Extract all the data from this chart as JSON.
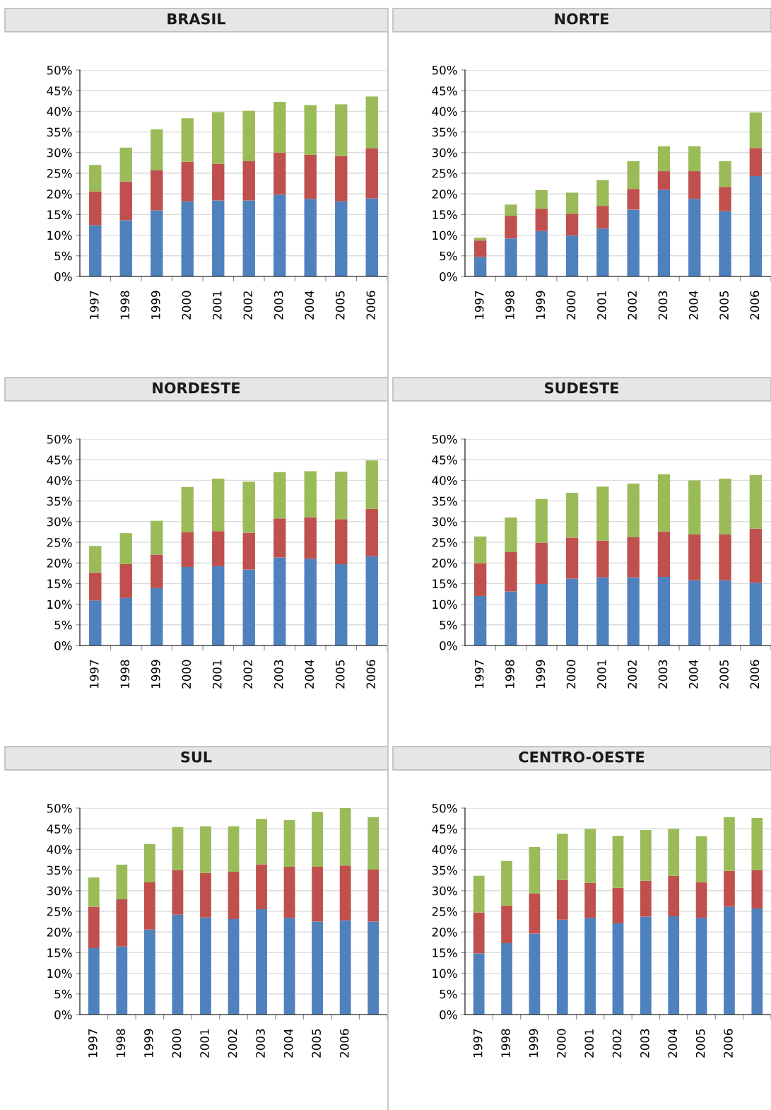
{
  "chart_data": [
    {
      "type": "bar",
      "title": "BRASIL",
      "stacked": true,
      "grid": "y",
      "categories": [
        "1997",
        "1998",
        "1999",
        "2000",
        "2001",
        "2002",
        "2003",
        "2004",
        "2005",
        "2006"
      ],
      "ylim": [
        0,
        50
      ],
      "yticks": [
        {
          "value": 0,
          "label": "0%"
        },
        {
          "value": 5,
          "label": "5%"
        },
        {
          "value": 10,
          "label": "10%"
        },
        {
          "value": 15,
          "label": "15%"
        },
        {
          "value": 20,
          "label": "20%"
        },
        {
          "value": 25,
          "label": "25%"
        },
        {
          "value": 30,
          "label": "30%"
        },
        {
          "value": 35,
          "label": "35%"
        },
        {
          "value": 40,
          "label": "40%"
        },
        {
          "value": 45,
          "label": "45%"
        },
        {
          "value": 50,
          "label": "50%"
        }
      ],
      "series": [
        {
          "color": "#4f81bd",
          "values": [
            12.4,
            13.6,
            16.0,
            18.2,
            18.4,
            18.4,
            19.8,
            18.8,
            18.2,
            18.9
          ]
        },
        {
          "color": "#c0504d",
          "values": [
            8.2,
            9.4,
            9.7,
            9.6,
            8.9,
            9.5,
            10.2,
            10.7,
            11.0,
            12.2
          ]
        },
        {
          "color": "#9bbb59",
          "values": [
            6.4,
            8.2,
            9.9,
            10.5,
            12.5,
            12.2,
            12.3,
            12.0,
            12.5,
            12.5
          ]
        }
      ]
    },
    {
      "type": "bar",
      "title": "NORTE",
      "stacked": true,
      "grid": "y",
      "categories": [
        "1997",
        "1998",
        "1999",
        "2000",
        "2001",
        "2002",
        "2003",
        "2004",
        "2005",
        "2006"
      ],
      "ylim": [
        0,
        50
      ],
      "yticks": [
        {
          "value": 0,
          "label": "0%"
        },
        {
          "value": 5,
          "label": "5%"
        },
        {
          "value": 10,
          "label": "10%"
        },
        {
          "value": 15,
          "label": "15%"
        },
        {
          "value": 20,
          "label": "20%"
        },
        {
          "value": 25,
          "label": "25%"
        },
        {
          "value": 30,
          "label": "30%"
        },
        {
          "value": 35,
          "label": "35%"
        },
        {
          "value": 40,
          "label": "40%"
        },
        {
          "value": 45,
          "label": "45%"
        },
        {
          "value": 50,
          "label": "50%"
        }
      ],
      "series": [
        {
          "color": "#4f81bd",
          "values": [
            4.7,
            9.2,
            11.0,
            9.9,
            11.6,
            16.2,
            21.0,
            18.8,
            15.8,
            24.3
          ]
        },
        {
          "color": "#c0504d",
          "values": [
            4.0,
            5.5,
            5.4,
            5.3,
            5.5,
            5.0,
            4.5,
            6.7,
            5.9,
            6.8
          ]
        },
        {
          "color": "#9bbb59",
          "values": [
            0.7,
            2.7,
            4.5,
            5.1,
            6.2,
            6.7,
            6.0,
            6.0,
            6.2,
            8.6
          ]
        }
      ]
    },
    {
      "type": "bar",
      "title": "NORDESTE",
      "stacked": true,
      "grid": "y",
      "categories": [
        "1997",
        "1998",
        "1999",
        "2000",
        "2001",
        "2002",
        "2003",
        "2004",
        "2005",
        "2006"
      ],
      "ylim": [
        0,
        50
      ],
      "yticks": [
        {
          "value": 0,
          "label": "0%"
        },
        {
          "value": 5,
          "label": "5%"
        },
        {
          "value": 10,
          "label": "10%"
        },
        {
          "value": 15,
          "label": "15%"
        },
        {
          "value": 20,
          "label": "20%"
        },
        {
          "value": 25,
          "label": "25%"
        },
        {
          "value": 30,
          "label": "30%"
        },
        {
          "value": 35,
          "label": "35%"
        },
        {
          "value": 40,
          "label": "40%"
        },
        {
          "value": 45,
          "label": "45%"
        },
        {
          "value": 50,
          "label": "50%"
        }
      ],
      "series": [
        {
          "color": "#4f81bd",
          "values": [
            10.9,
            11.5,
            13.9,
            19.0,
            19.2,
            18.4,
            21.3,
            21.0,
            19.7,
            21.6
          ]
        },
        {
          "color": "#c0504d",
          "values": [
            6.8,
            8.2,
            8.1,
            8.5,
            8.5,
            8.9,
            9.5,
            10.1,
            10.9,
            11.5
          ]
        },
        {
          "color": "#9bbb59",
          "values": [
            6.4,
            7.5,
            8.2,
            10.9,
            12.7,
            12.4,
            11.2,
            11.1,
            11.5,
            11.7
          ]
        }
      ]
    },
    {
      "type": "bar",
      "title": "SUDESTE",
      "stacked": true,
      "grid": "y",
      "categories": [
        "1997",
        "1998",
        "1999",
        "2000",
        "2001",
        "2002",
        "2003",
        "2004",
        "2005",
        "2006"
      ],
      "ylim": [
        0,
        50
      ],
      "yticks": [
        {
          "value": 0,
          "label": "0%"
        },
        {
          "value": 5,
          "label": "5%"
        },
        {
          "value": 10,
          "label": "10%"
        },
        {
          "value": 15,
          "label": "15%"
        },
        {
          "value": 20,
          "label": "20%"
        },
        {
          "value": 25,
          "label": "25%"
        },
        {
          "value": 30,
          "label": "30%"
        },
        {
          "value": 35,
          "label": "35%"
        },
        {
          "value": 40,
          "label": "40%"
        },
        {
          "value": 45,
          "label": "45%"
        },
        {
          "value": 50,
          "label": "50%"
        }
      ],
      "series": [
        {
          "color": "#4f81bd",
          "values": [
            12.0,
            13.1,
            14.9,
            16.2,
            16.5,
            16.5,
            16.6,
            15.8,
            15.8,
            15.2
          ]
        },
        {
          "color": "#c0504d",
          "values": [
            7.9,
            9.5,
            10.0,
            9.9,
            8.9,
            9.7,
            11.0,
            11.1,
            11.1,
            13.1
          ]
        },
        {
          "color": "#9bbb59",
          "values": [
            6.5,
            8.4,
            10.6,
            10.9,
            13.1,
            13.0,
            13.9,
            13.1,
            13.5,
            13.0
          ]
        }
      ]
    },
    {
      "type": "bar",
      "title": "SUL",
      "stacked": true,
      "grid": "y",
      "categories": [
        "1997",
        "1998",
        "1999",
        "2000",
        "2001",
        "2002",
        "2003",
        "2004",
        "2005",
        "2006",
        null
      ],
      "ylim": [
        0,
        50
      ],
      "yticks": [
        {
          "value": 0,
          "label": "0%"
        },
        {
          "value": 5,
          "label": "5%"
        },
        {
          "value": 10,
          "label": "10%"
        },
        {
          "value": 15,
          "label": "15%"
        },
        {
          "value": 20,
          "label": "20%"
        },
        {
          "value": 25,
          "label": "25%"
        },
        {
          "value": 30,
          "label": "30%"
        },
        {
          "value": 35,
          "label": "35%"
        },
        {
          "value": 40,
          "label": "40%"
        },
        {
          "value": 45,
          "label": "45%"
        },
        {
          "value": 50,
          "label": "50%"
        }
      ],
      "series": [
        {
          "color": "#4f81bd",
          "values": [
            16.1,
            16.5,
            20.6,
            24.2,
            23.5,
            23.1,
            25.5,
            23.4,
            22.5,
            22.8,
            22.5
          ]
        },
        {
          "color": "#c0504d",
          "values": [
            10.0,
            11.4,
            11.4,
            10.8,
            10.8,
            11.5,
            10.9,
            12.4,
            13.3,
            13.3,
            12.6
          ]
        },
        {
          "color": "#9bbb59",
          "values": [
            7.1,
            8.4,
            9.3,
            10.4,
            11.3,
            11.0,
            11.0,
            11.3,
            13.3,
            13.9,
            12.7
          ]
        }
      ]
    },
    {
      "type": "bar",
      "title": "CENTRO-OESTE",
      "stacked": true,
      "grid": "y",
      "categories": [
        "1997",
        "1998",
        "1999",
        "2000",
        "2001",
        "2002",
        "2003",
        "2004",
        "2005",
        "2006",
        null
      ],
      "ylim": [
        0,
        50
      ],
      "yticks": [
        {
          "value": 0,
          "label": "0%"
        },
        {
          "value": 5,
          "label": "5%"
        },
        {
          "value": 10,
          "label": "10%"
        },
        {
          "value": 15,
          "label": "15%"
        },
        {
          "value": 20,
          "label": "20%"
        },
        {
          "value": 25,
          "label": "25%"
        },
        {
          "value": 30,
          "label": "30%"
        },
        {
          "value": 35,
          "label": "35%"
        },
        {
          "value": 40,
          "label": "40%"
        },
        {
          "value": 45,
          "label": "45%"
        },
        {
          "value": 50,
          "label": "50%"
        }
      ],
      "series": [
        {
          "color": "#4f81bd",
          "values": [
            14.8,
            17.3,
            19.6,
            23.0,
            23.4,
            22.1,
            23.7,
            23.8,
            23.4,
            26.1,
            25.7
          ]
        },
        {
          "color": "#c0504d",
          "values": [
            9.9,
            9.1,
            9.7,
            9.6,
            8.5,
            8.6,
            8.7,
            9.8,
            8.6,
            8.7,
            9.3
          ]
        },
        {
          "color": "#9bbb59",
          "values": [
            8.9,
            10.8,
            11.3,
            11.2,
            13.1,
            12.6,
            12.3,
            11.4,
            11.2,
            13.0,
            12.6
          ]
        }
      ]
    }
  ]
}
